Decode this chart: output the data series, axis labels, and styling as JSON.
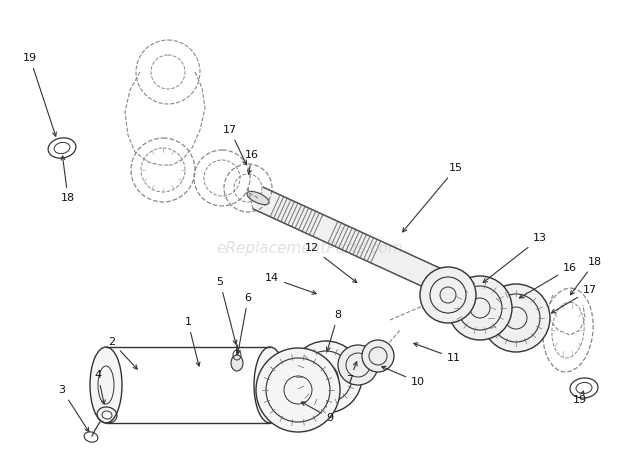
{
  "watermark": "eReplacementParts.com",
  "bg_color": "#ffffff",
  "line_color": "#333333",
  "dash_color": "#888888",
  "label_color": "#111111",
  "watermark_color": "#cccccc",
  "fig_w": 6.2,
  "fig_h": 4.75,
  "dpi": 100
}
